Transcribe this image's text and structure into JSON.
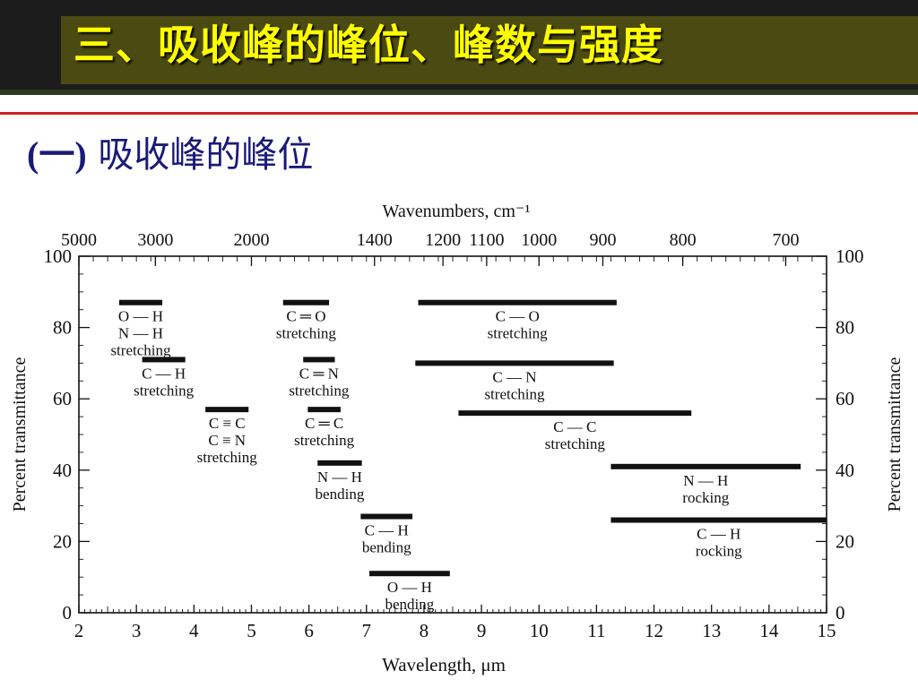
{
  "slide": {
    "title": "三、吸收峰的峰位、峰数与强度",
    "subtitle_paren": "(一)",
    "subtitle_text": "吸收峰的峰位"
  },
  "chart_data": {
    "type": "range-bars",
    "top_axis_label": "Wavenumbers, cm⁻¹",
    "top_ticks": [
      {
        "label": "5000",
        "wavelength_um": 2.0
      },
      {
        "label": "3000",
        "wavelength_um": 3.33
      },
      {
        "label": "2000",
        "wavelength_um": 5.0
      },
      {
        "label": "1400",
        "wavelength_um": 7.14
      },
      {
        "label": "1200",
        "wavelength_um": 8.33
      },
      {
        "label": "1100",
        "wavelength_um": 9.09
      },
      {
        "label": "1000",
        "wavelength_um": 10.0
      },
      {
        "label": "900",
        "wavelength_um": 11.11
      },
      {
        "label": "800",
        "wavelength_um": 12.5
      },
      {
        "label": "700",
        "wavelength_um": 14.29
      }
    ],
    "xlabel": "Wavelength, μm",
    "xlim": [
      2,
      15
    ],
    "x_ticks": [
      2,
      3,
      4,
      5,
      6,
      7,
      8,
      9,
      10,
      11,
      12,
      13,
      14,
      15
    ],
    "ylabel": "Percent transmittance",
    "ylim": [
      0,
      100
    ],
    "y_ticks": [
      0,
      20,
      40,
      60,
      80,
      100
    ],
    "bands": [
      {
        "name": "o-h-n-h-stretching",
        "lines": [
          "O — H",
          "N — H",
          "stretching"
        ],
        "x_start": 2.7,
        "x_end": 3.45,
        "y": 87
      },
      {
        "name": "c-h-stretching",
        "lines": [
          "C — H",
          "stretching"
        ],
        "x_start": 3.1,
        "x_end": 3.85,
        "y": 71
      },
      {
        "name": "c-triple-c-n-stretching",
        "lines": [
          "C ≡ C",
          "C ≡ N",
          "stretching"
        ],
        "x_start": 4.2,
        "x_end": 4.95,
        "y": 57
      },
      {
        "name": "c-double-o-stretching",
        "lines": [
          "C ═ O",
          "stretching"
        ],
        "x_start": 5.55,
        "x_end": 6.35,
        "y": 87
      },
      {
        "name": "c-double-n-stretching",
        "lines": [
          "C ═ N",
          "stretching"
        ],
        "x_start": 5.9,
        "x_end": 6.45,
        "y": 71
      },
      {
        "name": "c-double-c-stretching",
        "lines": [
          "C ═ C",
          "stretching"
        ],
        "x_start": 5.98,
        "x_end": 6.55,
        "y": 57
      },
      {
        "name": "n-h-bending",
        "lines": [
          "N — H",
          "bending"
        ],
        "x_start": 6.15,
        "x_end": 6.92,
        "y": 42
      },
      {
        "name": "c-h-bending",
        "lines": [
          "C — H",
          "bending"
        ],
        "x_start": 6.9,
        "x_end": 7.8,
        "y": 27
      },
      {
        "name": "o-h-bending",
        "lines": [
          "O — H",
          "bending"
        ],
        "x_start": 7.05,
        "x_end": 8.45,
        "y": 11
      },
      {
        "name": "c-o-stretching",
        "lines": [
          "C — O",
          "stretching"
        ],
        "x_start": 7.9,
        "x_end": 11.35,
        "y": 87
      },
      {
        "name": "c-n-stretching",
        "lines": [
          "C — N",
          "stretching"
        ],
        "x_start": 7.85,
        "x_end": 11.3,
        "y": 70
      },
      {
        "name": "c-c-stretching",
        "lines": [
          "C — C",
          "stretching"
        ],
        "x_start": 8.6,
        "x_end": 12.65,
        "y": 56
      },
      {
        "name": "n-h-rocking",
        "lines": [
          "N — H",
          "rocking"
        ],
        "x_start": 11.25,
        "x_end": 14.55,
        "y": 41
      },
      {
        "name": "c-h-rocking",
        "lines": [
          "C — H",
          "rocking"
        ],
        "x_start": 11.25,
        "x_end": 15.0,
        "y": 26
      }
    ]
  }
}
